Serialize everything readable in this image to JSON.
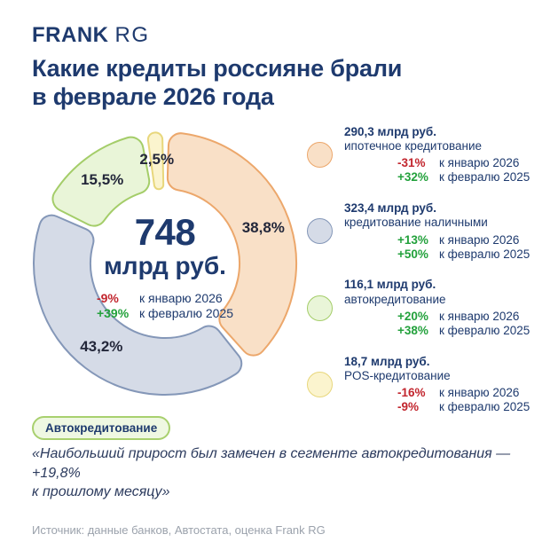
{
  "colors": {
    "navy": "#1E3A6E",
    "label_dark": "#23273A",
    "red": "#C2262E",
    "green": "#23A13C",
    "source_gray": "#9BA2AC",
    "badge_bg": "#EFF8E2",
    "badge_border": "#A8D06E",
    "background": "#FFFFFF"
  },
  "header": {
    "logo_bold": "FRANK",
    "logo_light": "RG",
    "title_lines": [
      "Какие кредиты россияне брали",
      "в феврале 2026 года"
    ]
  },
  "chart_data": {
    "type": "pie",
    "variant": "donut",
    "direction": "clockwise",
    "start_angle_deg": 0,
    "center_total": {
      "value": "748",
      "unit": "млрд руб.",
      "mom_pct": "-9%",
      "yoy_pct": "+39%"
    },
    "comparison_labels": {
      "mom": "к январю 2026",
      "yoy": "к февралю 2025"
    },
    "segments": [
      {
        "label": "ипотечное кредитование",
        "amount": "290,3 млрд руб.",
        "percent": 38.8,
        "percent_label": "38,8%",
        "mom_pct": "-31%",
        "yoy_pct": "+32%",
        "fill": "#F9E0C7",
        "stroke": "#ECA76B"
      },
      {
        "label": "кредитование наличными",
        "amount": "323,4 млрд руб.",
        "percent": 43.2,
        "percent_label": "43,2%",
        "mom_pct": "+13%",
        "yoy_pct": "+50%",
        "fill": "#D5DBE7",
        "stroke": "#8497B8"
      },
      {
        "label": "автокредитование",
        "amount": "116,1 млрд руб.",
        "percent": 15.5,
        "percent_label": "15,5%",
        "mom_pct": "+20%",
        "yoy_pct": "+38%",
        "fill": "#E9F5D8",
        "stroke": "#A4CD69"
      },
      {
        "label": "POS-кредитование",
        "amount": "18,7 млрд руб.",
        "percent": 2.5,
        "percent_label": "2,5%",
        "mom_pct": "-16%",
        "yoy_pct": "-9%",
        "fill": "#FBF4CE",
        "stroke": "#E8D77C"
      }
    ]
  },
  "highlight": {
    "badge": "Автокредитование",
    "quote_lines": [
      "«Наибольший прирост был замечен в сегменте автокредитования — +19,8%",
      "к прошлому месяцу»"
    ]
  },
  "footer": {
    "source": "Источник: данные банков, Автостата, оценка Frank RG"
  }
}
